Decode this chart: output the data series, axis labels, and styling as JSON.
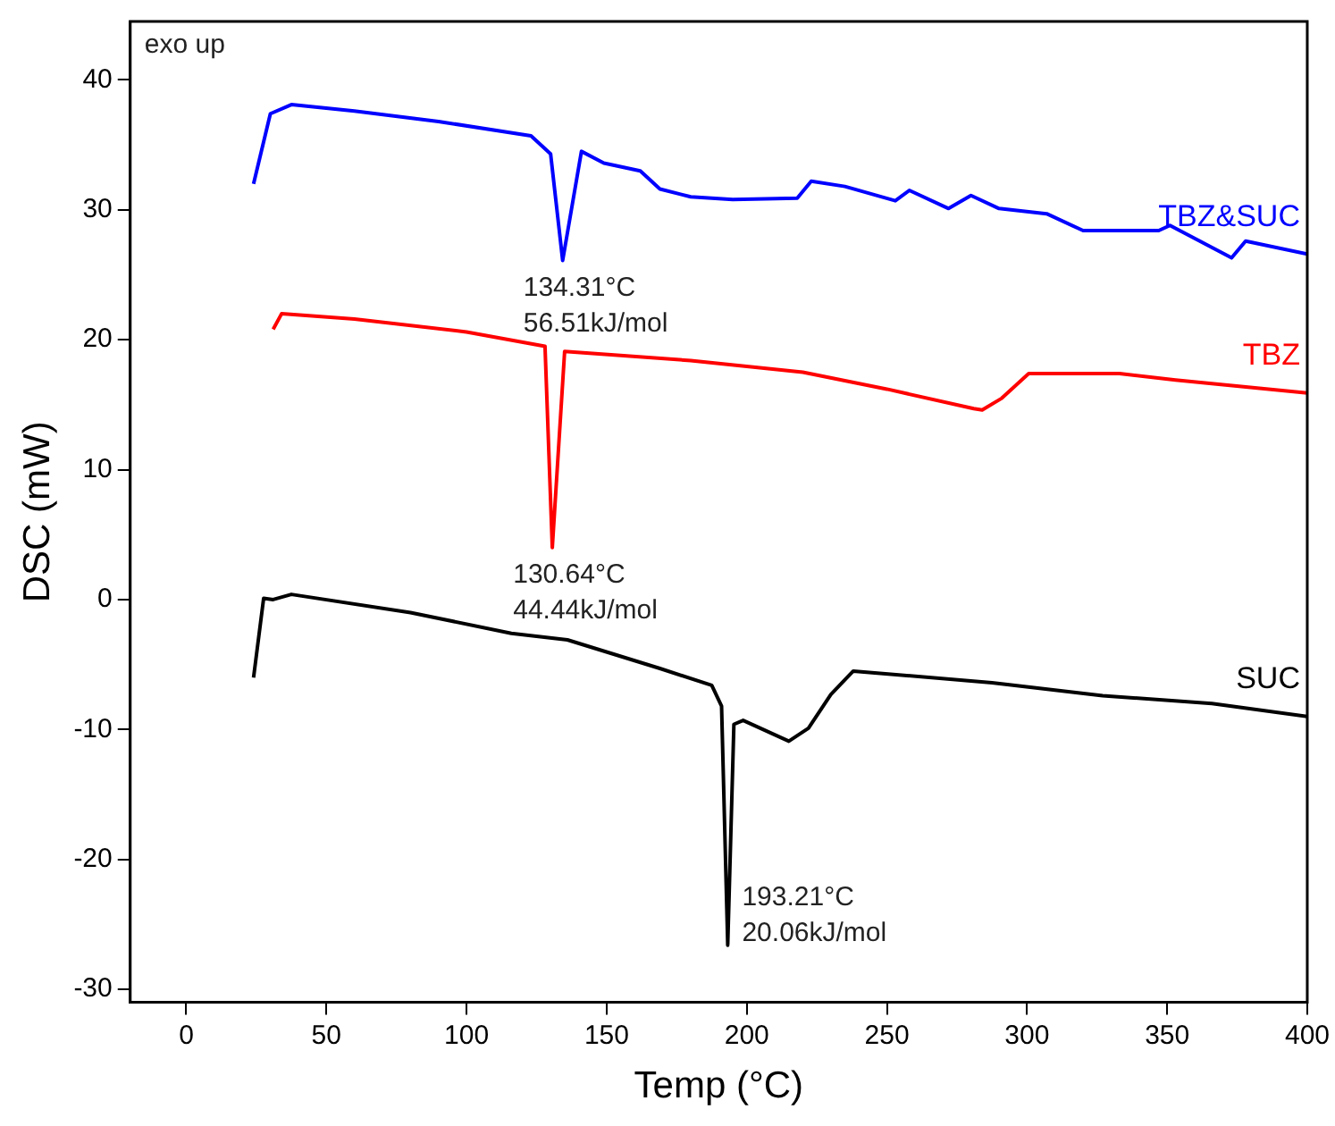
{
  "chart_data": {
    "type": "line",
    "xlabel": "Temp (°C)",
    "ylabel": "DSC (mW)",
    "xlim": [
      -20,
      400
    ],
    "xticks": [
      0,
      50,
      100,
      150,
      200,
      250,
      300,
      350,
      400
    ],
    "ylim": [
      -31,
      44.5
    ],
    "yticks": [
      -30,
      -20,
      -10,
      0,
      10,
      20,
      30,
      40
    ],
    "grid": false,
    "legend": false,
    "marker": "none",
    "line_style": "solid",
    "series": [
      {
        "name": "TBZ&SUC",
        "color": "#0000ff",
        "x": [
          24,
          30,
          37.5,
          60,
          90,
          123,
          130,
          134.3,
          141,
          149,
          162,
          169,
          180,
          195,
          218,
          223,
          235,
          253,
          258,
          272,
          280,
          290,
          307,
          320,
          347,
          351,
          373,
          378,
          400
        ],
        "values": [
          32,
          37.4,
          38.1,
          37.6,
          36.8,
          35.7,
          34.3,
          26.1,
          34.5,
          33.6,
          33,
          31.6,
          31,
          30.8,
          30.9,
          32.2,
          31.8,
          30.7,
          31.5,
          30.1,
          31.1,
          30.1,
          29.7,
          28.4,
          28.4,
          28.8,
          26.3,
          27.6,
          26.6
        ]
      },
      {
        "name": "TBZ",
        "color": "#ff0000",
        "x": [
          31,
          34,
          60,
          100,
          128,
          130.6,
          135,
          180,
          220,
          250,
          281,
          284,
          291,
          300.6,
          333,
          353,
          400
        ],
        "values": [
          20.8,
          22,
          21.6,
          20.6,
          19.5,
          4,
          19.1,
          18.4,
          17.5,
          16.2,
          14.7,
          14.6,
          15.5,
          17.4,
          17.4,
          16.9,
          15.9
        ]
      },
      {
        "name": "SUC",
        "color": "#000000",
        "x": [
          24,
          27.6,
          31,
          37.5,
          80,
          116,
          136,
          169,
          187.5,
          191,
          193.2,
          195.4,
          198.7,
          215,
          222,
          230,
          238,
          287.5,
          327,
          366,
          400
        ],
        "values": [
          -6,
          0.1,
          0,
          0.4,
          -1,
          -2.6,
          -3.1,
          -5.3,
          -6.6,
          -8.2,
          -26.6,
          -9.6,
          -9.3,
          -10.9,
          -9.9,
          -7.3,
          -5.5,
          -6.4,
          -7.4,
          -8,
          -9
        ]
      }
    ],
    "annotations": [
      "exo up",
      {
        "text": "134.31°C\n56.51kJ/mol",
        "x": 134.31,
        "y": 26.1
      },
      {
        "text": "130.64°C\n44.44kJ/mol",
        "x": 130.64,
        "y": 4
      },
      {
        "text": "193.21°C\n20.06kJ/mol",
        "x": 193.21,
        "y": -26.6
      }
    ]
  }
}
